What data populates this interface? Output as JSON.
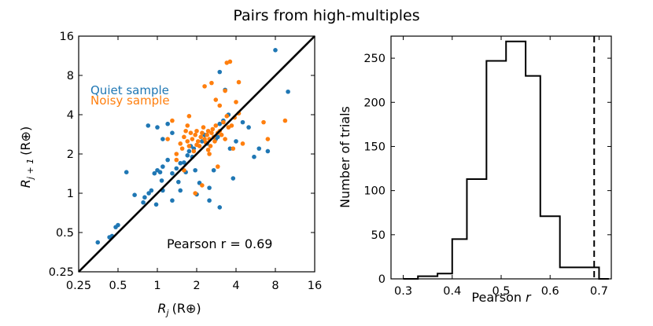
{
  "figure": {
    "title": "Pairs from high-multiples"
  },
  "colors": {
    "quiet": "#1f77b4",
    "noisy": "#ff7f0e",
    "line": "#000000"
  },
  "chart_data": [
    {
      "type": "scatter",
      "panel": "left",
      "xlabel_main": "R",
      "xlabel_sub": "j",
      "xlabel_unit": "(R⊕)",
      "ylabel_main": "R",
      "ylabel_sub": "j + 1",
      "ylabel_unit": "(R⊕)",
      "xscale": "log2",
      "yscale": "log2",
      "xlim": [
        0.25,
        16
      ],
      "ylim": [
        0.25,
        16
      ],
      "xticks": [
        0.25,
        0.5,
        1,
        2,
        4,
        8,
        16
      ],
      "xticklabels": [
        "0.25",
        "0.5",
        "1",
        "2",
        "4",
        "8",
        "16"
      ],
      "yticks": [
        0.25,
        0.5,
        1,
        2,
        4,
        8,
        16
      ],
      "yticklabels": [
        "0.25",
        "0.5",
        "1",
        "2",
        "4",
        "8",
        "16"
      ],
      "legend": [
        "Quiet sample",
        "Noisy sample"
      ],
      "legend_position": "top-left",
      "annotation": "Pearson r = 0.69",
      "reference_line": "y = x",
      "series": [
        {
          "name": "Quiet sample",
          "points": [
            [
              0.35,
              0.42
            ],
            [
              0.43,
              0.46
            ],
            [
              0.45,
              0.47
            ],
            [
              0.48,
              0.55
            ],
            [
              0.5,
              0.57
            ],
            [
              0.58,
              1.45
            ],
            [
              0.67,
              0.97
            ],
            [
              0.78,
              0.85
            ],
            [
              0.8,
              0.93
            ],
            [
              0.86,
              1.0
            ],
            [
              0.9,
              1.05
            ],
            [
              0.95,
              1.42
            ],
            [
              1.0,
              1.5
            ],
            [
              1.05,
              1.45
            ],
            [
              1.08,
              1.25
            ],
            [
              1.1,
              1.05
            ],
            [
              0.98,
              0.82
            ],
            [
              1.3,
              0.88
            ],
            [
              0.85,
              3.3
            ],
            [
              1.0,
              3.2
            ],
            [
              1.1,
              2.6
            ],
            [
              1.2,
              3.4
            ],
            [
              1.3,
              2.9
            ],
            [
              1.3,
              1.42
            ],
            [
              1.4,
              1.55
            ],
            [
              1.45,
              1.22
            ],
            [
              1.5,
              1.05
            ],
            [
              1.6,
              1.72
            ],
            [
              1.65,
              1.45
            ],
            [
              1.7,
              1.95
            ],
            [
              1.75,
              2.1
            ],
            [
              1.8,
              2.3
            ],
            [
              1.85,
              1.9
            ],
            [
              1.95,
              1.5
            ],
            [
              2.0,
              0.98
            ],
            [
              2.1,
              1.2
            ],
            [
              2.2,
              2.5
            ],
            [
              2.3,
              2.8
            ],
            [
              2.5,
              1.1
            ],
            [
              2.5,
              0.88
            ],
            [
              2.7,
              1.5
            ],
            [
              2.8,
              2.6
            ],
            [
              3.0,
              0.78
            ],
            [
              3.0,
              3.4
            ],
            [
              3.2,
              3.6
            ],
            [
              3.5,
              4.0
            ],
            [
              3.6,
              2.2
            ],
            [
              3.8,
              1.3
            ],
            [
              4.0,
              2.5
            ],
            [
              4.5,
              3.5
            ],
            [
              5.0,
              3.2
            ],
            [
              5.5,
              1.9
            ],
            [
              6.0,
              2.2
            ],
            [
              7.0,
              2.1
            ],
            [
              8.0,
              12.5
            ],
            [
              10.0,
              6.0
            ],
            [
              3.3,
              6.2
            ],
            [
              3.0,
              8.5
            ],
            [
              1.2,
              1.8
            ],
            [
              1.5,
              1.7
            ],
            [
              2.9,
              2.7
            ],
            [
              2.4,
              2.4
            ],
            [
              1.9,
              2.2
            ],
            [
              1.1,
              1.6
            ]
          ]
        },
        {
          "name": "Noisy sample",
          "points": [
            [
              1.4,
              2.0
            ],
            [
              1.5,
              2.4
            ],
            [
              1.55,
              2.2
            ],
            [
              1.6,
              2.7
            ],
            [
              1.65,
              3.0
            ],
            [
              1.7,
              2.5
            ],
            [
              1.75,
              2.3
            ],
            [
              1.8,
              2.9
            ],
            [
              1.85,
              2.6
            ],
            [
              1.9,
              2.1
            ],
            [
              1.95,
              2.8
            ],
            [
              2.0,
              3.0
            ],
            [
              2.05,
              2.5
            ],
            [
              2.1,
              2.3
            ],
            [
              2.15,
              2.7
            ],
            [
              2.2,
              2.9
            ],
            [
              2.25,
              3.2
            ],
            [
              2.3,
              2.6
            ],
            [
              2.35,
              2.45
            ],
            [
              2.4,
              2.8
            ],
            [
              2.45,
              3.0
            ],
            [
              2.5,
              2.6
            ],
            [
              2.55,
              2.3
            ],
            [
              2.6,
              2.9
            ],
            [
              2.65,
              3.1
            ],
            [
              2.7,
              2.7
            ],
            [
              2.75,
              2.5
            ],
            [
              2.8,
              3.3
            ],
            [
              2.9,
              2.9
            ],
            [
              3.0,
              3.0
            ],
            [
              3.1,
              2.8
            ],
            [
              3.2,
              3.5
            ],
            [
              3.3,
              2.6
            ],
            [
              3.4,
              3.9
            ],
            [
              3.5,
              3.2
            ],
            [
              3.7,
              3.3
            ],
            [
              3.9,
              3.8
            ],
            [
              4.2,
              4.1
            ],
            [
              4.5,
              2.4
            ],
            [
              4.0,
              5.0
            ],
            [
              3.0,
              4.7
            ],
            [
              2.8,
              5.2
            ],
            [
              2.6,
              7.0
            ],
            [
              2.3,
              6.6
            ],
            [
              3.4,
              10.0
            ],
            [
              3.6,
              10.2
            ],
            [
              4.2,
              7.1
            ],
            [
              3.3,
              6.1
            ],
            [
              7.0,
              2.6
            ],
            [
              6.5,
              3.5
            ],
            [
              9.5,
              3.6
            ],
            [
              1.3,
              3.6
            ],
            [
              1.4,
              1.8
            ],
            [
              1.6,
              1.5
            ],
            [
              1.75,
              3.9
            ],
            [
              1.95,
              1.0
            ],
            [
              2.2,
              1.15
            ],
            [
              2.5,
              2.0
            ],
            [
              2.9,
              1.6
            ],
            [
              1.2,
              2.6
            ],
            [
              3.8,
              2.2
            ],
            [
              2.0,
              2.35
            ],
            [
              1.7,
              3.3
            ],
            [
              2.45,
              2.15
            ]
          ]
        }
      ]
    },
    {
      "type": "histogram",
      "panel": "right",
      "xlabel_main": "Pearson",
      "xlabel_var": "r",
      "ylabel": "Number of trials",
      "xlim": [
        0.275,
        0.725
      ],
      "ylim": [
        0,
        275
      ],
      "xticks": [
        0.3,
        0.4,
        0.5,
        0.6,
        0.7
      ],
      "xticklabels": [
        "0.3",
        "0.4",
        "0.5",
        "0.6",
        "0.7"
      ],
      "yticks": [
        0,
        50,
        100,
        150,
        200,
        250
      ],
      "yticklabels": [
        "0",
        "50",
        "100",
        "150",
        "200",
        "250"
      ],
      "bins": [
        0.3,
        0.33,
        0.37,
        0.4,
        0.43,
        0.47,
        0.51,
        0.55,
        0.58,
        0.62,
        0.66,
        0.7,
        0.72
      ],
      "counts": [
        0,
        3,
        6,
        45,
        113,
        247,
        269,
        230,
        71,
        13,
        13,
        0
      ],
      "observed_value": 0.69,
      "observed_line_style": "dashed"
    }
  ]
}
